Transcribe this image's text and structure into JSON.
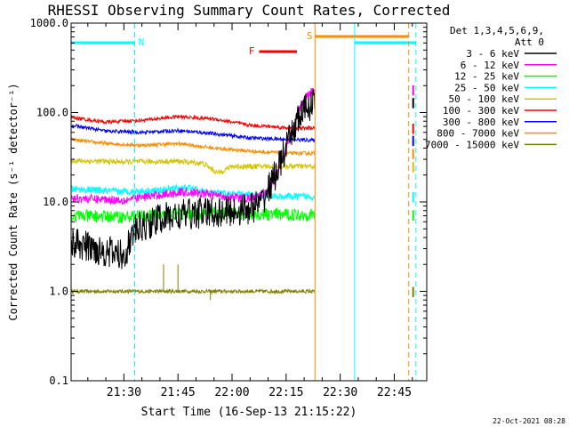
{
  "chart_data": {
    "type": "line",
    "title": "RHESSI Observing Summary Count Rates, Corrected",
    "xlabel": "Start Time (16-Sep-13 21:15:22)",
    "ylabel": "Corrected Count Rate (s⁻¹ detector⁻¹)",
    "y_scale": "log",
    "ylim": [
      0.1,
      1000
    ],
    "y_ticks": [
      {
        "value": 0.1,
        "label": "0.1"
      },
      {
        "value": 1,
        "label": "1.0"
      },
      {
        "value": 10,
        "label": "10.0"
      },
      {
        "value": 100,
        "label": "100.0"
      },
      {
        "value": 1000,
        "label": "1000.0"
      }
    ],
    "xlim": [
      "21:15:22",
      "22:54:00"
    ],
    "x_ticks": [
      "21:30",
      "21:45",
      "22:00",
      "22:15",
      "22:30",
      "22:45"
    ],
    "legend_header": [
      "Det 1,3,4,5,6,9,",
      "Att 0"
    ],
    "legend_position": "right",
    "timestamp": "22-Oct-2021 08:28",
    "data_gaps": [
      [
        "22:38:00",
        "22:49:00"
      ]
    ],
    "series": [
      {
        "name": "3 - 6 keV",
        "color": "#000000",
        "x": [
          "21:15:22",
          "21:30",
          "21:33",
          "21:40",
          "21:50",
          "22:00",
          "22:05",
          "22:08",
          "22:12",
          "22:16",
          "22:18",
          "22:20",
          "22:22",
          "22:23"
        ],
        "y": [
          3.5,
          2.5,
          4.8,
          6.5,
          7.5,
          7.8,
          8.5,
          9.5,
          20,
          50,
          80,
          105,
          125,
          130
        ]
      },
      {
        "name": "6 - 12 keV",
        "color": "#ff00ff",
        "x": [
          "21:15:22",
          "21:30",
          "21:40",
          "21:47",
          "21:55",
          "22:02",
          "22:07",
          "22:10",
          "22:14",
          "22:18",
          "22:20",
          "22:22",
          "22:23"
        ],
        "y": [
          11,
          10.5,
          12,
          13,
          12,
          11,
          11,
          13,
          30,
          90,
          140,
          170,
          180
        ]
      },
      {
        "name": "12 - 25 keV",
        "color": "#00ff00",
        "x": [
          "21:15:22",
          "21:30",
          "21:45",
          "21:55",
          "22:05",
          "22:15",
          "22:23"
        ],
        "y": [
          7,
          6.8,
          7.3,
          7.5,
          7.3,
          7.2,
          7.2
        ]
      },
      {
        "name": "25 - 50 keV",
        "color": "#00ffff",
        "x": [
          "21:15:22",
          "21:30",
          "21:40",
          "21:47",
          "21:55",
          "22:05",
          "22:12",
          "22:23"
        ],
        "y": [
          14,
          13,
          13.5,
          14.5,
          12.5,
          12,
          11.5,
          11.5
        ]
      },
      {
        "name": "50 - 100 keV",
        "color": "#d4c400",
        "x": [
          "21:15:22",
          "21:30",
          "21:45",
          "21:52",
          "21:56",
          "22:00",
          "22:10",
          "22:23"
        ],
        "y": [
          29,
          28,
          28.5,
          27,
          21,
          25,
          25,
          25
        ]
      },
      {
        "name": "100 - 300 keV",
        "color": "#ff0000",
        "x": [
          "21:15:22",
          "21:25",
          "21:35",
          "21:45",
          "21:55",
          "22:05",
          "22:10",
          "22:16",
          "22:23"
        ],
        "y": [
          88,
          78,
          82,
          90,
          85,
          72,
          70,
          67,
          67
        ]
      },
      {
        "name": "300 - 800 keV",
        "color": "#0000ff",
        "x": [
          "21:15:22",
          "21:25",
          "21:35",
          "21:45",
          "21:55",
          "22:05",
          "22:15",
          "22:23"
        ],
        "y": [
          72,
          62,
          60,
          63,
          58,
          52,
          50,
          49
        ]
      },
      {
        "name": "800 - 7000 keV",
        "color": "#ff8c00",
        "x": [
          "21:15:22",
          "21:25",
          "21:35",
          "21:45",
          "21:55",
          "22:05",
          "22:15",
          "22:23"
        ],
        "y": [
          50,
          45,
          43,
          45,
          40,
          37,
          35,
          35
        ]
      },
      {
        "name": "7000 - 15000 keV",
        "color": "#808000",
        "x": [
          "21:15:22",
          "22:23"
        ],
        "y": [
          1.0,
          1.0
        ]
      }
    ],
    "annotations": [
      {
        "label": "N",
        "color": "#00ffff"
      },
      {
        "label": "F",
        "color": "#ff0000"
      },
      {
        "label": "S",
        "color": "#ff8c00"
      }
    ]
  }
}
